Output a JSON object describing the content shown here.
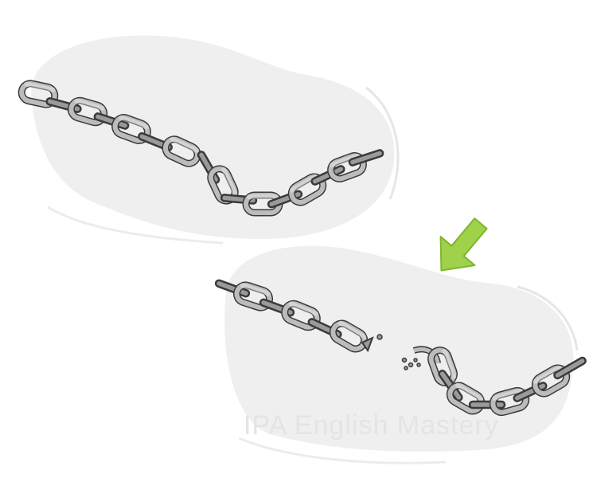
{
  "image": {
    "subject": "chain-breaking-illustration",
    "colors": {
      "blob": "#efefef",
      "chain_fill": "#b9b9b9",
      "chain_stroke": "#3a3a3a",
      "arrow": "#9fd24a"
    }
  },
  "watermark": {
    "text": "IPA English Mastery"
  }
}
